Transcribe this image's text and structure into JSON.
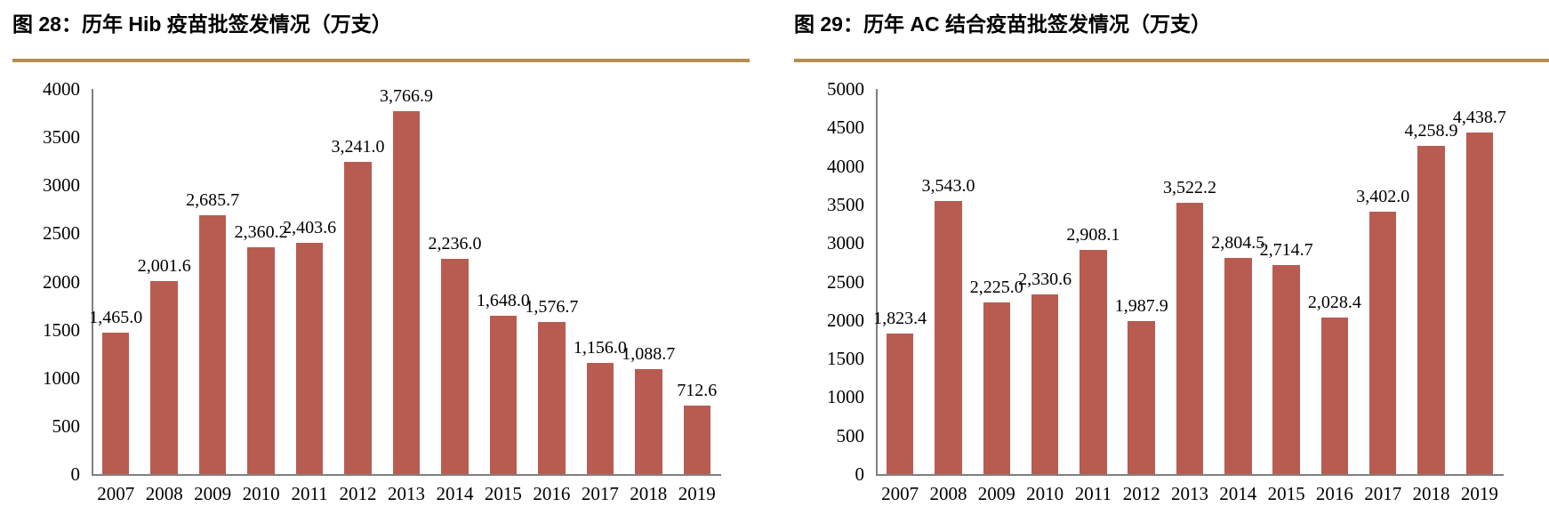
{
  "styles": {
    "bar_color": "#B85C52",
    "accent_rule_color": "#B28F4F",
    "axis_color": "#808080",
    "text_color": "#000000",
    "background": "#FFFFFF"
  },
  "chart_data": [
    {
      "type": "bar",
      "title": "图 28：历年 Hib 疫苗批签发情况（万支）",
      "categories": [
        "2007",
        "2008",
        "2009",
        "2010",
        "2011",
        "2012",
        "2013",
        "2014",
        "2015",
        "2016",
        "2017",
        "2018",
        "2019"
      ],
      "values": [
        1465.0,
        2001.6,
        2685.7,
        2360.2,
        2403.6,
        3241.0,
        3766.9,
        2236.0,
        1648.0,
        1576.7,
        1156.0,
        1088.7,
        712.6
      ],
      "value_labels": [
        "1,465.0",
        "2,001.6",
        "2,685.7",
        "2,360.2",
        "2,403.6",
        "3,241.0",
        "3,766.9",
        "2,236.0",
        "1,648.0",
        "1,576.7",
        "1,156.0",
        "1,088.7",
        "712.6"
      ],
      "xlabel": "",
      "ylabel": "",
      "ylim": [
        0,
        4000
      ],
      "ytick_step": 500,
      "ytick_labels": [
        "0",
        "500",
        "1000",
        "1500",
        "2000",
        "2500",
        "3000",
        "3500",
        "4000"
      ],
      "grid": false,
      "legend": null,
      "bar_color": "#B85C52"
    },
    {
      "type": "bar",
      "title": "图 29：历年 AC 结合疫苗批签发情况（万支）",
      "categories": [
        "2007",
        "2008",
        "2009",
        "2010",
        "2011",
        "2012",
        "2013",
        "2014",
        "2015",
        "2016",
        "2017",
        "2018",
        "2019"
      ],
      "values": [
        1823.4,
        3543.0,
        2225.0,
        2330.6,
        2908.1,
        1987.9,
        3522.2,
        2804.5,
        2714.7,
        2028.4,
        3402.0,
        4258.9,
        4438.7
      ],
      "value_labels": [
        "1,823.4",
        "3,543.0",
        "2,225.0",
        "2,330.6",
        "2,908.1",
        "1,987.9",
        "3,522.2",
        "2,804.5",
        "2,714.7",
        "2,028.4",
        "3,402.0",
        "4,258.9",
        "4,438.7"
      ],
      "xlabel": "",
      "ylabel": "",
      "ylim": [
        0,
        5000
      ],
      "ytick_step": 500,
      "ytick_labels": [
        "0",
        "500",
        "1000",
        "1500",
        "2000",
        "2500",
        "3000",
        "3500",
        "4000",
        "4500",
        "5000"
      ],
      "grid": false,
      "legend": null,
      "bar_color": "#B85C52"
    }
  ]
}
